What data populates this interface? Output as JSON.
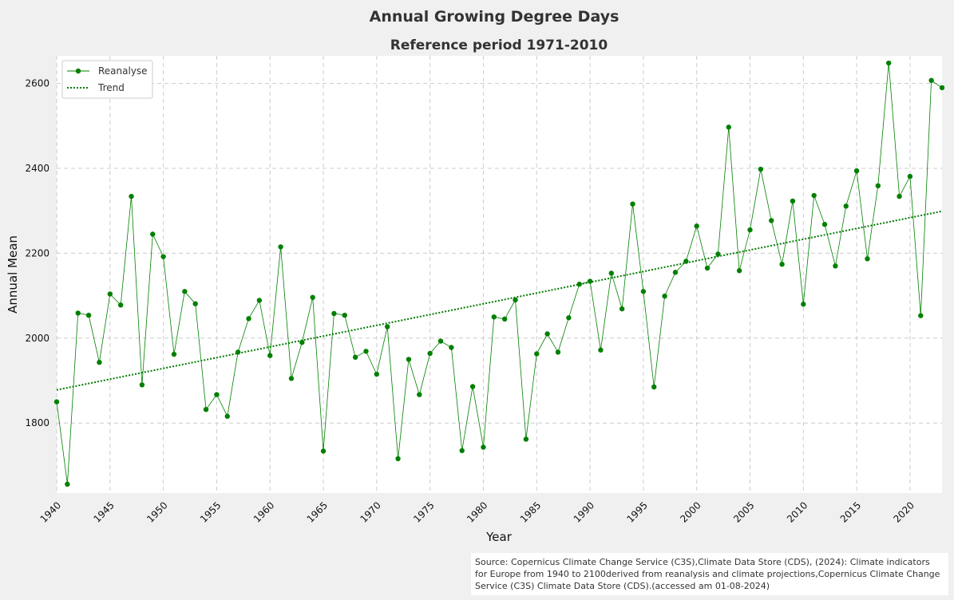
{
  "chart_data": {
    "type": "line",
    "title": "Annual Growing Degree Days",
    "subtitle": "Reference period 1971-2010",
    "xlabel": "Year",
    "ylabel": "Annual Mean",
    "xlim": [
      1940,
      2023
    ],
    "ylim": [
      1635,
      2665
    ],
    "x_ticks": [
      1940,
      1945,
      1950,
      1955,
      1960,
      1965,
      1970,
      1975,
      1980,
      1985,
      1990,
      1995,
      2000,
      2005,
      2010,
      2015,
      2020
    ],
    "y_ticks": [
      1800,
      2000,
      2200,
      2400,
      2600
    ],
    "grid": true,
    "legend_position": "top-left",
    "colors": {
      "series": "#008000",
      "trend": "#007a00",
      "grid": "#cccccc",
      "background": "#f0f0f0",
      "plot": "#ffffff"
    },
    "series": [
      {
        "name": "Reanalyse",
        "marker": "circle",
        "x": [
          1940,
          1941,
          1942,
          1943,
          1944,
          1945,
          1946,
          1947,
          1948,
          1949,
          1950,
          1951,
          1952,
          1953,
          1954,
          1955,
          1956,
          1957,
          1958,
          1959,
          1960,
          1961,
          1962,
          1963,
          1964,
          1965,
          1966,
          1967,
          1968,
          1969,
          1970,
          1971,
          1972,
          1973,
          1974,
          1975,
          1976,
          1977,
          1978,
          1979,
          1980,
          1981,
          1982,
          1983,
          1984,
          1985,
          1986,
          1987,
          1988,
          1989,
          1990,
          1991,
          1992,
          1993,
          1994,
          1995,
          1996,
          1997,
          1998,
          1999,
          2000,
          2001,
          2002,
          2003,
          2004,
          2005,
          2006,
          2007,
          2008,
          2009,
          2010,
          2011,
          2012,
          2013,
          2014,
          2015,
          2016,
          2017,
          2018,
          2019,
          2020,
          2021,
          2022,
          2023
        ],
        "values": [
          1850,
          1656,
          2059,
          2054,
          1943,
          2104,
          2078,
          2334,
          1890,
          2245,
          2192,
          1962,
          2110,
          2081,
          1832,
          1867,
          1816,
          1967,
          2046,
          2089,
          1959,
          2215,
          1905,
          1990,
          2096,
          1734,
          2058,
          2054,
          1955,
          1969,
          1915,
          2027,
          1716,
          1950,
          1867,
          1964,
          1993,
          1978,
          1735,
          1886,
          1743,
          2050,
          2045,
          2090,
          1762,
          1963,
          2010,
          1967,
          2048,
          2127,
          2134,
          1972,
          2153,
          2069,
          2316,
          2110,
          1885,
          2099,
          2155,
          2181,
          2264,
          2165,
          2198,
          2497,
          2159,
          2255,
          2398,
          2277,
          2174,
          2323,
          2080,
          2336,
          2268,
          2170,
          2311,
          2394,
          2187,
          2359,
          2648,
          2334,
          2381,
          2053,
          2607,
          2590
        ]
      },
      {
        "name": "Trend",
        "style": "dotted",
        "x": [
          1940,
          2023
        ],
        "values": [
          1878,
          2299
        ]
      }
    ]
  },
  "source_text": "Source: Copernicus Climate Change Service (C3S),Climate Data Store (CDS), (2024): Climate indicators for Europe from 1940 to 2100derived from reanalysis and climate projections,Copernicus Climate Change Service (C3S) Climate Data Store (CDS).(accessed am 01-08-2024)"
}
